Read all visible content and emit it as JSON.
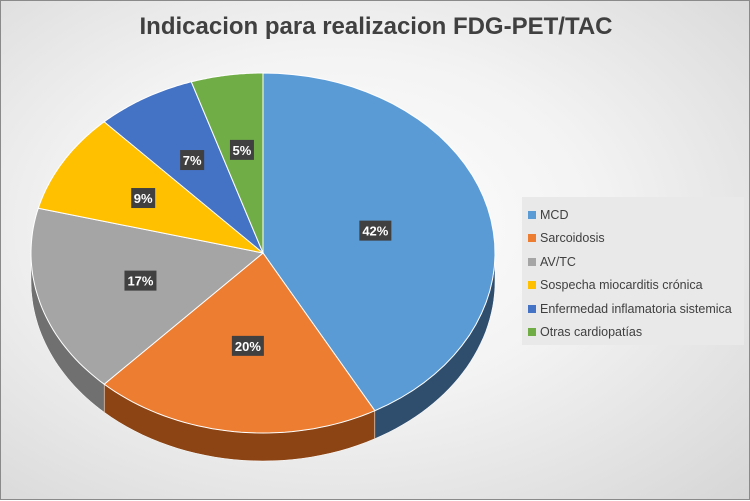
{
  "chart_data": {
    "type": "pie",
    "title": "Indicacion para realizacion FDG-PET/TAC",
    "categories": [
      "MCD",
      "Sarcoidosis",
      "AV/TC",
      "Sospecha miocarditis crónica",
      "Enfermedad inflamatoria sistemica",
      "Otras cardiopatías"
    ],
    "values": [
      42,
      20,
      17,
      9,
      7,
      5
    ],
    "labels": [
      "42%",
      "20%",
      "17%",
      "9%",
      "7%",
      "5%"
    ],
    "colors": [
      "#5b9bd5",
      "#ed7d31",
      "#a5a5a5",
      "#ffc000",
      "#4472c4",
      "#70ad47"
    ],
    "side_colors": [
      "#2f4e6e",
      "#8c4414",
      "#707070",
      "#9a7400",
      "#2a4678",
      "#44692b"
    ],
    "legend_position": "right",
    "style": "3d"
  }
}
